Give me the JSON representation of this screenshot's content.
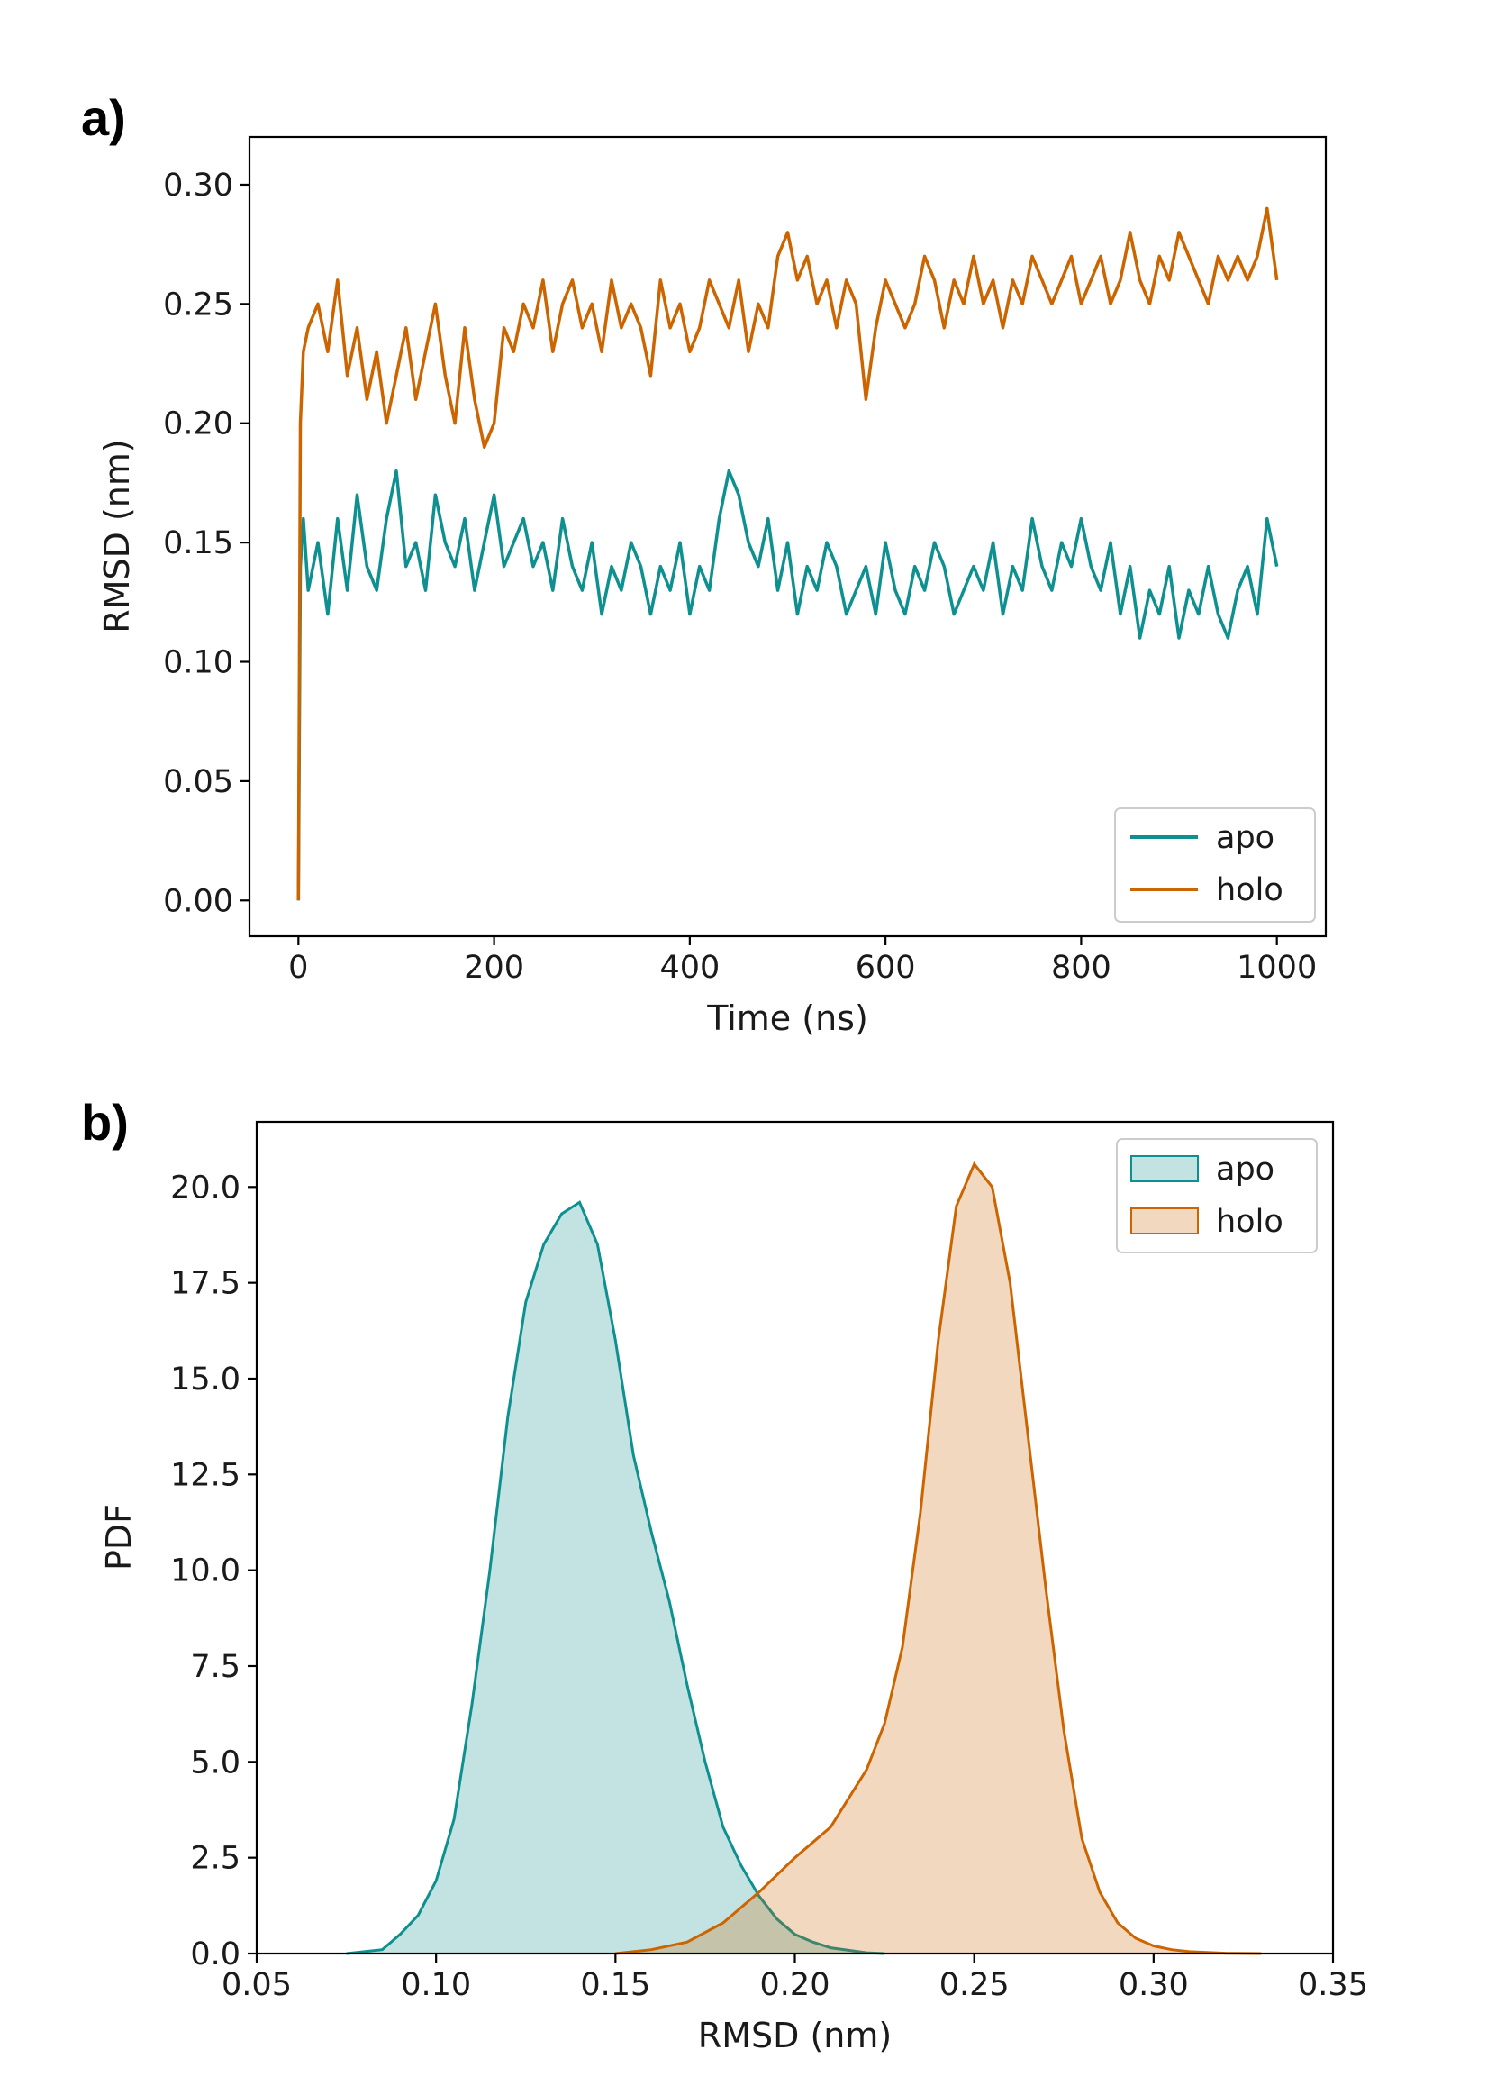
{
  "colors": {
    "apo": "#0e9090",
    "holo": "#cc6500"
  },
  "chart_data": [
    {
      "panel": "a)",
      "type": "line",
      "xlabel": "Time (ns)",
      "ylabel": "RMSD (nm)",
      "xlim": [
        -50,
        1050
      ],
      "ylim": [
        -0.015,
        0.32
      ],
      "xticks": [
        0,
        200,
        400,
        600,
        800,
        1000
      ],
      "xtick_labels": [
        "0",
        "200",
        "400",
        "600",
        "800",
        "1000"
      ],
      "yticks": [
        0.0,
        0.05,
        0.1,
        0.15,
        0.2,
        0.25,
        0.3
      ],
      "ytick_labels": [
        "0.00",
        "0.05",
        "0.10",
        "0.15",
        "0.20",
        "0.25",
        "0.30"
      ],
      "legend_loc": "lower-right",
      "series": [
        {
          "name": "apo",
          "x": [
            0,
            2,
            5,
            10,
            20,
            30,
            40,
            50,
            60,
            70,
            80,
            90,
            100,
            110,
            120,
            130,
            140,
            150,
            160,
            170,
            180,
            190,
            200,
            210,
            220,
            230,
            240,
            250,
            260,
            270,
            280,
            290,
            300,
            310,
            320,
            330,
            340,
            350,
            360,
            370,
            380,
            390,
            400,
            410,
            420,
            430,
            440,
            450,
            460,
            470,
            480,
            490,
            500,
            510,
            520,
            530,
            540,
            550,
            560,
            570,
            580,
            590,
            600,
            610,
            620,
            630,
            640,
            650,
            660,
            670,
            680,
            690,
            700,
            710,
            720,
            730,
            740,
            750,
            760,
            770,
            780,
            790,
            800,
            810,
            820,
            830,
            840,
            850,
            860,
            870,
            880,
            890,
            900,
            910,
            920,
            930,
            940,
            950,
            960,
            970,
            980,
            990,
            1000
          ],
          "values": [
            0.0,
            0.14,
            0.16,
            0.13,
            0.15,
            0.12,
            0.16,
            0.13,
            0.17,
            0.14,
            0.13,
            0.16,
            0.18,
            0.14,
            0.15,
            0.13,
            0.17,
            0.15,
            0.14,
            0.16,
            0.13,
            0.15,
            0.17,
            0.14,
            0.15,
            0.16,
            0.14,
            0.15,
            0.13,
            0.16,
            0.14,
            0.13,
            0.15,
            0.12,
            0.14,
            0.13,
            0.15,
            0.14,
            0.12,
            0.14,
            0.13,
            0.15,
            0.12,
            0.14,
            0.13,
            0.16,
            0.18,
            0.17,
            0.15,
            0.14,
            0.16,
            0.13,
            0.15,
            0.12,
            0.14,
            0.13,
            0.15,
            0.14,
            0.12,
            0.13,
            0.14,
            0.12,
            0.15,
            0.13,
            0.12,
            0.14,
            0.13,
            0.15,
            0.14,
            0.12,
            0.13,
            0.14,
            0.13,
            0.15,
            0.12,
            0.14,
            0.13,
            0.16,
            0.14,
            0.13,
            0.15,
            0.14,
            0.16,
            0.14,
            0.13,
            0.15,
            0.12,
            0.14,
            0.11,
            0.13,
            0.12,
            0.14,
            0.11,
            0.13,
            0.12,
            0.14,
            0.12,
            0.11,
            0.13,
            0.14,
            0.12,
            0.16,
            0.14
          ]
        },
        {
          "name": "holo",
          "x": [
            0,
            2,
            5,
            10,
            20,
            30,
            40,
            50,
            60,
            70,
            80,
            90,
            100,
            110,
            120,
            130,
            140,
            150,
            160,
            170,
            180,
            190,
            200,
            210,
            220,
            230,
            240,
            250,
            260,
            270,
            280,
            290,
            300,
            310,
            320,
            330,
            340,
            350,
            360,
            370,
            380,
            390,
            400,
            410,
            420,
            430,
            440,
            450,
            460,
            470,
            480,
            490,
            500,
            510,
            520,
            530,
            540,
            550,
            560,
            570,
            580,
            590,
            600,
            610,
            620,
            630,
            640,
            650,
            660,
            670,
            680,
            690,
            700,
            710,
            720,
            730,
            740,
            750,
            760,
            770,
            780,
            790,
            800,
            810,
            820,
            830,
            840,
            850,
            860,
            870,
            880,
            890,
            900,
            910,
            920,
            930,
            940,
            950,
            960,
            970,
            980,
            990,
            1000
          ],
          "values": [
            0.0,
            0.2,
            0.23,
            0.24,
            0.25,
            0.23,
            0.26,
            0.22,
            0.24,
            0.21,
            0.23,
            0.2,
            0.22,
            0.24,
            0.21,
            0.23,
            0.25,
            0.22,
            0.2,
            0.24,
            0.21,
            0.19,
            0.2,
            0.24,
            0.23,
            0.25,
            0.24,
            0.26,
            0.23,
            0.25,
            0.26,
            0.24,
            0.25,
            0.23,
            0.26,
            0.24,
            0.25,
            0.24,
            0.22,
            0.26,
            0.24,
            0.25,
            0.23,
            0.24,
            0.26,
            0.25,
            0.24,
            0.26,
            0.23,
            0.25,
            0.24,
            0.27,
            0.28,
            0.26,
            0.27,
            0.25,
            0.26,
            0.24,
            0.26,
            0.25,
            0.21,
            0.24,
            0.26,
            0.25,
            0.24,
            0.25,
            0.27,
            0.26,
            0.24,
            0.26,
            0.25,
            0.27,
            0.25,
            0.26,
            0.24,
            0.26,
            0.25,
            0.27,
            0.26,
            0.25,
            0.26,
            0.27,
            0.25,
            0.26,
            0.27,
            0.25,
            0.26,
            0.28,
            0.26,
            0.25,
            0.27,
            0.26,
            0.28,
            0.27,
            0.26,
            0.25,
            0.27,
            0.26,
            0.27,
            0.26,
            0.27,
            0.29,
            0.26
          ]
        }
      ]
    },
    {
      "panel": "b)",
      "type": "area",
      "xlabel": "RMSD (nm)",
      "ylabel": "PDF",
      "xlim": [
        0.05,
        0.35
      ],
      "ylim": [
        0,
        21.7
      ],
      "xticks": [
        0.05,
        0.1,
        0.15,
        0.2,
        0.25,
        0.3,
        0.35
      ],
      "xtick_labels": [
        "0.05",
        "0.10",
        "0.15",
        "0.20",
        "0.25",
        "0.30",
        "0.35"
      ],
      "yticks": [
        0.0,
        2.5,
        5.0,
        7.5,
        10.0,
        12.5,
        15.0,
        17.5,
        20.0
      ],
      "ytick_labels": [
        "0.0",
        "2.5",
        "5.0",
        "7.5",
        "10.0",
        "12.5",
        "15.0",
        "17.5",
        "20.0"
      ],
      "legend_loc": "top-right",
      "series": [
        {
          "name": "apo",
          "x": [
            0.075,
            0.085,
            0.09,
            0.095,
            0.1,
            0.105,
            0.11,
            0.115,
            0.12,
            0.125,
            0.13,
            0.135,
            0.14,
            0.145,
            0.15,
            0.155,
            0.16,
            0.165,
            0.17,
            0.175,
            0.18,
            0.185,
            0.19,
            0.195,
            0.2,
            0.205,
            0.21,
            0.22,
            0.225
          ],
          "values": [
            0.0,
            0.1,
            0.5,
            1.0,
            1.9,
            3.5,
            6.5,
            10.0,
            14.0,
            17.0,
            18.5,
            19.3,
            19.6,
            18.5,
            16.0,
            13.0,
            11.0,
            9.2,
            7.0,
            5.0,
            3.3,
            2.3,
            1.5,
            0.9,
            0.5,
            0.3,
            0.15,
            0.02,
            0.0
          ]
        },
        {
          "name": "holo",
          "x": [
            0.15,
            0.16,
            0.17,
            0.18,
            0.19,
            0.2,
            0.21,
            0.22,
            0.225,
            0.23,
            0.235,
            0.24,
            0.245,
            0.25,
            0.255,
            0.26,
            0.265,
            0.27,
            0.275,
            0.28,
            0.285,
            0.29,
            0.295,
            0.3,
            0.305,
            0.31,
            0.32,
            0.33
          ],
          "values": [
            0.0,
            0.1,
            0.3,
            0.8,
            1.6,
            2.5,
            3.3,
            4.8,
            6.0,
            8.0,
            11.5,
            16.0,
            19.5,
            20.6,
            20.0,
            17.5,
            13.5,
            9.5,
            5.8,
            3.0,
            1.6,
            0.8,
            0.4,
            0.2,
            0.1,
            0.05,
            0.01,
            0.0
          ]
        }
      ]
    }
  ]
}
